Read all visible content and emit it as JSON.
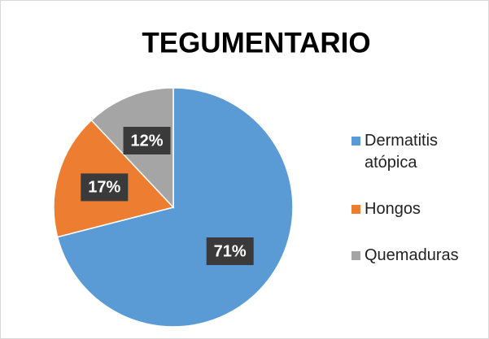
{
  "chart_data": {
    "type": "pie",
    "title": "TEGUMENTARIO",
    "categories": [
      "Dermatitis atópica",
      "Hongos",
      "Quemaduras"
    ],
    "values": [
      71,
      17,
      12
    ],
    "value_labels": [
      "71%",
      "17%",
      "12%"
    ],
    "colors": [
      "#5b9bd5",
      "#ed7d31",
      "#a5a5a5"
    ],
    "legend": "right"
  }
}
